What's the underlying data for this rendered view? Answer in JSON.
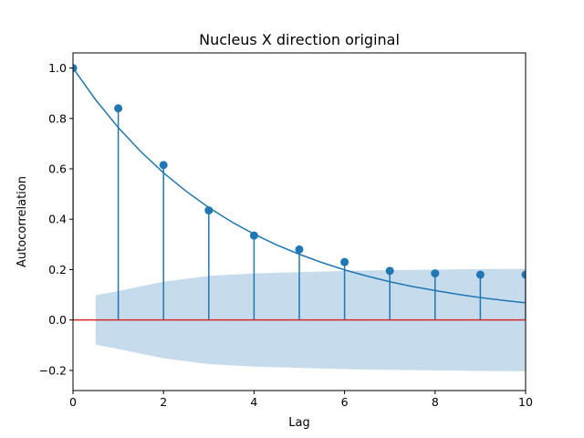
{
  "chart_data": {
    "type": "stem",
    "title": "Nucleus X direction original",
    "xlabel": "Lag",
    "ylabel": "Autocorrelation",
    "xlim": [
      0,
      10
    ],
    "ylim": [
      -0.28,
      1.06
    ],
    "xticks": [
      0,
      2,
      4,
      6,
      8,
      10
    ],
    "xtick_labels": [
      "0",
      "2",
      "4",
      "6",
      "8",
      "10"
    ],
    "yticks": [
      -0.2,
      0.0,
      0.2,
      0.4,
      0.6,
      0.8,
      1.0
    ],
    "ytick_labels": [
      "−0.2",
      "0.0",
      "0.2",
      "0.4",
      "0.6",
      "0.8",
      "1.0"
    ],
    "grid": false,
    "lags": [
      0,
      1,
      2,
      3,
      4,
      5,
      6,
      7,
      8,
      9,
      10
    ],
    "acf": [
      1.0,
      0.84,
      0.615,
      0.435,
      0.335,
      0.28,
      0.23,
      0.195,
      0.185,
      0.18,
      0.18
    ],
    "fitted_curve": {
      "x": [
        0,
        0.5,
        1,
        1.5,
        2,
        2.5,
        3,
        3.5,
        4,
        4.5,
        5,
        5.5,
        6,
        6.5,
        7,
        7.5,
        8,
        8.5,
        9,
        9.5,
        10
      ],
      "y": [
        1.0,
        0.874,
        0.764,
        0.668,
        0.584,
        0.511,
        0.446,
        0.39,
        0.341,
        0.298,
        0.261,
        0.228,
        0.199,
        0.174,
        0.152,
        0.133,
        0.117,
        0.102,
        0.089,
        0.078,
        0.068
      ]
    },
    "confidence_band": {
      "x": [
        0.5,
        1,
        2,
        3,
        4,
        5,
        6,
        7,
        8,
        9,
        10
      ],
      "upper": [
        0.098,
        0.115,
        0.152,
        0.175,
        0.185,
        0.19,
        0.195,
        0.198,
        0.2,
        0.202,
        0.203
      ],
      "lower": [
        -0.098,
        -0.115,
        -0.152,
        -0.175,
        -0.185,
        -0.19,
        -0.195,
        -0.198,
        -0.2,
        -0.202,
        -0.203
      ]
    },
    "colors": {
      "stem": "#1f77b4",
      "marker": "#1f77b4",
      "curve": "#1f77b4",
      "band": "#c6dbeb",
      "baseline": "#d62728"
    }
  }
}
